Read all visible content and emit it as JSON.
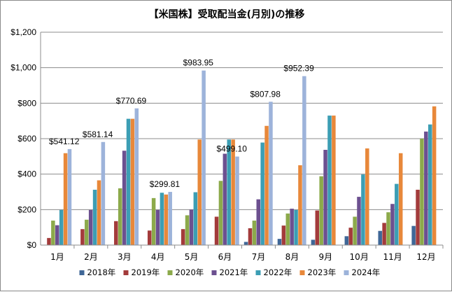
{
  "chart_data": {
    "type": "bar",
    "title": "【米国株】受取配当金(月別)の推移",
    "categories": [
      "1月",
      "2月",
      "3月",
      "4月",
      "5月",
      "6月",
      "7月",
      "8月",
      "9月",
      "10月",
      "11月",
      "12月"
    ],
    "ylim": [
      0,
      1200
    ],
    "yticks": [
      0,
      200,
      400,
      600,
      800,
      1000,
      1200
    ],
    "ytick_labels": [
      "$0",
      "$200",
      "$400",
      "$600",
      "$800",
      "$1,000",
      "$1,200"
    ],
    "grid": true,
    "legend_position": "bottom",
    "series": [
      {
        "name": "2018年",
        "color": "#3F6797",
        "values": [
          0,
          0,
          0,
          0,
          0,
          0,
          18,
          35,
          30,
          50,
          80,
          108
        ]
      },
      {
        "name": "2019年",
        "color": "#A33B3B",
        "values": [
          40,
          90,
          135,
          82,
          90,
          160,
          95,
          110,
          195,
          98,
          125,
          312
        ]
      },
      {
        "name": "2020年",
        "color": "#8CAA4B",
        "values": [
          138,
          143,
          320,
          265,
          168,
          362,
          138,
          178,
          388,
          160,
          185,
          600
        ]
      },
      {
        "name": "2021年",
        "color": "#6C5090",
        "values": [
          112,
          198,
          532,
          198,
          200,
          515,
          258,
          205,
          537,
          272,
          232,
          640
        ]
      },
      {
        "name": "2022年",
        "color": "#3C9EB4",
        "values": [
          198,
          312,
          712,
          295,
          298,
          595,
          578,
          198,
          730,
          398,
          345,
          680
        ]
      },
      {
        "name": "2023年",
        "color": "#E8883A",
        "values": [
          518,
          365,
          712,
          285,
          595,
          595,
          672,
          450,
          730,
          545,
          518,
          782
        ]
      },
      {
        "name": "2024年",
        "color": "#9DB3DA",
        "values": [
          541.12,
          581.14,
          770.69,
          299.81,
          983.95,
          499.1,
          807.98,
          952.39,
          null,
          null,
          null,
          null
        ]
      }
    ],
    "annotations": [
      "$541.12",
      "$581.14",
      "$770.69",
      "$299.81",
      "$983.95",
      "$499.10",
      "$807.98",
      "$952.39"
    ]
  }
}
